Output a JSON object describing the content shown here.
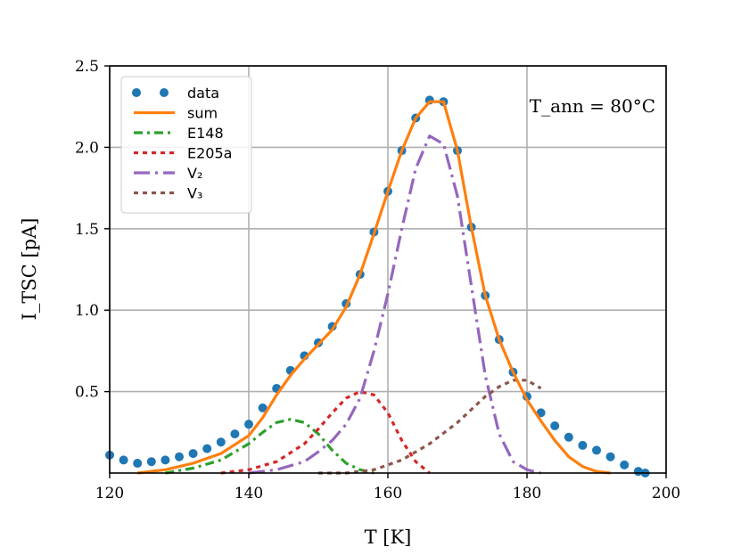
{
  "chart_data": {
    "type": "line",
    "xlabel": "T [K]",
    "ylabel": "I_TSC [pA]",
    "xlim": [
      120,
      200
    ],
    "ylim": [
      0,
      2.5
    ],
    "xticks": [
      "120",
      "140",
      "160",
      "180",
      "200"
    ],
    "yticks": [
      "0.5",
      "1.0",
      "1.5",
      "2.0",
      "2.5"
    ],
    "grid": true,
    "legend_position": "top-left",
    "annotation": "T_ann = 80°C",
    "colors": {
      "data": "#1f77b4",
      "sum": "#ff7f0e",
      "E148": "#2ca02c",
      "E205a": "#d62728",
      "V2": "#9467bd",
      "V3": "#8c564b"
    },
    "series": [
      {
        "name": "data",
        "style": "dots",
        "x": [
          120,
          122,
          124,
          126,
          128,
          130,
          132,
          134,
          136,
          138,
          140,
          142,
          144,
          146,
          148,
          150,
          152,
          154,
          156,
          158,
          160,
          162,
          164,
          166,
          168,
          170,
          172,
          174,
          176,
          178,
          180,
          182,
          184,
          186,
          188,
          190,
          192,
          194,
          196,
          197
        ],
        "y": [
          0.11,
          0.08,
          0.06,
          0.07,
          0.08,
          0.1,
          0.12,
          0.15,
          0.19,
          0.24,
          0.3,
          0.4,
          0.52,
          0.63,
          0.72,
          0.8,
          0.9,
          1.04,
          1.22,
          1.48,
          1.73,
          1.98,
          2.18,
          2.29,
          2.28,
          1.98,
          1.51,
          1.09,
          0.82,
          0.62,
          0.47,
          0.37,
          0.29,
          0.22,
          0.17,
          0.14,
          0.1,
          0.05,
          0.01,
          0.0
        ]
      },
      {
        "name": "sum",
        "style": "solid",
        "x": [
          124,
          128,
          132,
          136,
          140,
          142,
          144,
          146,
          148,
          150,
          152,
          154,
          156,
          158,
          160,
          162,
          164,
          166,
          168,
          170,
          172,
          174,
          176,
          178,
          180,
          182,
          184,
          186,
          188,
          190,
          192
        ],
        "y": [
          0.0,
          0.02,
          0.06,
          0.12,
          0.23,
          0.34,
          0.48,
          0.6,
          0.7,
          0.79,
          0.88,
          1.02,
          1.22,
          1.47,
          1.73,
          1.98,
          2.18,
          2.28,
          2.28,
          1.98,
          1.51,
          1.09,
          0.82,
          0.62,
          0.45,
          0.32,
          0.2,
          0.1,
          0.04,
          0.01,
          0.0
        ]
      },
      {
        "name": "E148",
        "style": "dashdot",
        "x": [
          128,
          132,
          136,
          140,
          142,
          144,
          146,
          148,
          150,
          152,
          154,
          156,
          158
        ],
        "y": [
          0.0,
          0.03,
          0.08,
          0.18,
          0.25,
          0.31,
          0.33,
          0.31,
          0.24,
          0.14,
          0.06,
          0.02,
          0.0
        ]
      },
      {
        "name": "E205a",
        "style": "dotted",
        "x": [
          136,
          140,
          144,
          148,
          150,
          152,
          154,
          156,
          158,
          160,
          162,
          164,
          166
        ],
        "y": [
          0.0,
          0.02,
          0.07,
          0.18,
          0.27,
          0.37,
          0.46,
          0.5,
          0.48,
          0.37,
          0.2,
          0.07,
          0.0
        ]
      },
      {
        "name": "V₂",
        "style": "dashdotlong",
        "x": [
          140,
          144,
          148,
          150,
          152,
          154,
          156,
          158,
          160,
          162,
          164,
          166,
          168,
          170,
          172,
          174,
          176,
          178,
          180,
          182
        ],
        "y": [
          0.0,
          0.02,
          0.07,
          0.13,
          0.2,
          0.3,
          0.46,
          0.75,
          1.1,
          1.5,
          1.87,
          2.07,
          2.02,
          1.7,
          1.15,
          0.6,
          0.24,
          0.07,
          0.02,
          0.0
        ]
      },
      {
        "name": "V₃",
        "style": "dotted",
        "x": [
          150,
          154,
          158,
          162,
          166,
          170,
          172,
          174,
          176,
          178,
          180,
          182
        ],
        "y": [
          0.0,
          0.0,
          0.02,
          0.08,
          0.18,
          0.31,
          0.39,
          0.47,
          0.53,
          0.57,
          0.57,
          0.52
        ]
      }
    ]
  }
}
